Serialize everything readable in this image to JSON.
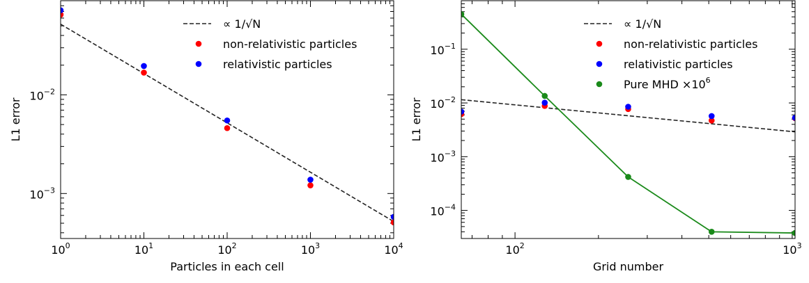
{
  "chart_data": [
    {
      "type": "scatter",
      "xlabel": "Particles in each cell",
      "ylabel": "L1 error",
      "xscale": "log",
      "yscale": "log",
      "xlim": [
        1,
        10000
      ],
      "ylim": [
        0.00035,
        0.09
      ],
      "x_ticks": [
        {
          "value": 1,
          "base": "10",
          "exp": "0"
        },
        {
          "value": 10,
          "base": "10",
          "exp": "1"
        },
        {
          "value": 100,
          "base": "10",
          "exp": "2"
        },
        {
          "value": 1000,
          "base": "10",
          "exp": "3"
        },
        {
          "value": 10000,
          "base": "10",
          "exp": "4"
        }
      ],
      "y_ticks": [
        {
          "value": 0.001,
          "base": "10",
          "exp": "−3"
        },
        {
          "value": 0.01,
          "base": "10",
          "exp": "−2"
        }
      ],
      "legend_position": "top-right",
      "series": [
        {
          "name": "∝ 1/√N",
          "kind": "line",
          "style": "dashed",
          "color": "#222222",
          "x": [
            1,
            10000
          ],
          "y": [
            0.052,
            0.00052
          ]
        },
        {
          "name": "non-relativistic particles",
          "kind": "scatter",
          "color": "#ff0000",
          "x": [
            1,
            10,
            100,
            1000,
            10000
          ],
          "y": [
            0.065,
            0.0168,
            0.0046,
            0.00121,
            0.00051
          ]
        },
        {
          "name": "relativistic particles",
          "kind": "scatter",
          "color": "#0000ff",
          "x": [
            1,
            10,
            100,
            1000,
            10000
          ],
          "y": [
            0.072,
            0.0196,
            0.0055,
            0.00138,
            0.00058
          ]
        }
      ]
    },
    {
      "type": "scatter",
      "xlabel": "Grid number",
      "ylabel": "L1 error",
      "xscale": "log",
      "yscale": "log",
      "xlim": [
        64,
        1024
      ],
      "ylim": [
        3e-05,
        0.8
      ],
      "x_ticks": [
        {
          "value": 100,
          "base": "10",
          "exp": "2"
        },
        {
          "value": 1000,
          "base": "10",
          "exp": "3"
        }
      ],
      "y_ticks": [
        {
          "value": 0.0001,
          "base": "10",
          "exp": "−4"
        },
        {
          "value": 0.001,
          "base": "10",
          "exp": "−3"
        },
        {
          "value": 0.01,
          "base": "10",
          "exp": "−2"
        },
        {
          "value": 0.1,
          "base": "10",
          "exp": "−1"
        }
      ],
      "legend_position": "top-right",
      "series": [
        {
          "name": "∝ 1/√N",
          "kind": "line",
          "style": "dashed",
          "color": "#222222",
          "x": [
            64,
            1024
          ],
          "y": [
            0.0115,
            0.0029
          ]
        },
        {
          "name": "non-relativistic particles",
          "kind": "scatter",
          "color": "#ff0000",
          "x": [
            64,
            128,
            256,
            512,
            1024
          ],
          "y": [
            0.0062,
            0.0088,
            0.0077,
            0.0047,
            0.0052
          ]
        },
        {
          "name": "relativistic particles",
          "kind": "scatter",
          "color": "#0000ff",
          "x": [
            64,
            128,
            256,
            512,
            1024
          ],
          "y": [
            0.0069,
            0.0101,
            0.0085,
            0.0057,
            0.0053
          ]
        },
        {
          "name": "Pure MHD ×10",
          "name_sup": "6",
          "kind": "line-marker",
          "color": "#1a8a1a",
          "x": [
            64,
            128,
            256,
            512,
            1024
          ],
          "y": [
            0.45,
            0.0135,
            0.00042,
            4e-05,
            3.8e-05
          ]
        }
      ]
    }
  ]
}
